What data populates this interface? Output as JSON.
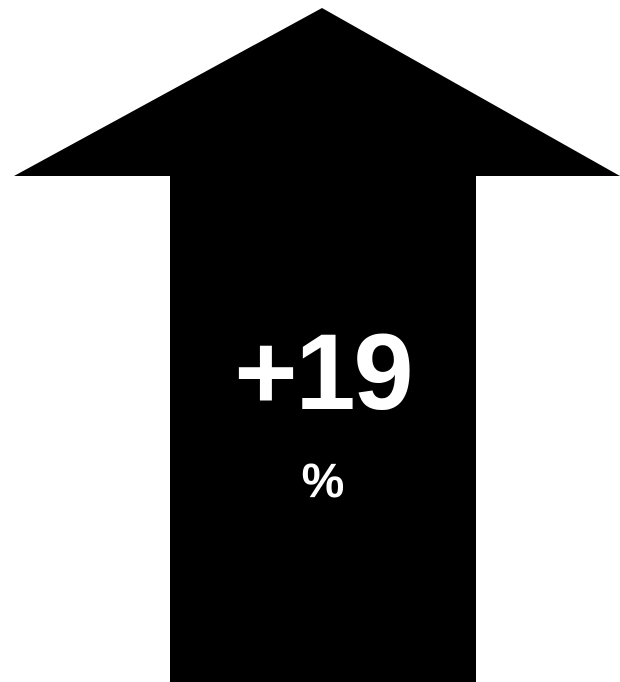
{
  "indicator": {
    "value": "+19",
    "unit": "%",
    "direction": "up",
    "arrow_color": "#000000",
    "text_color": "#ffffff",
    "background_color": "#ffffff"
  }
}
